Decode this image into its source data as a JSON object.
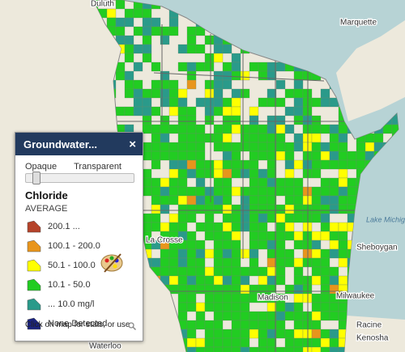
{
  "map": {
    "labels": [
      "Duluth",
      "Marquette",
      "Lake Michigan",
      "Sheboygan",
      "Milwaukee",
      "Racine",
      "Kenosha",
      "La Crosse",
      "Madison",
      "Waterloo"
    ]
  },
  "panel": {
    "title": "Groundwater...",
    "close": "×",
    "slider": {
      "min_label": "Opaque",
      "max_label": "Transparent"
    },
    "layer": "Chloride",
    "field": "AVERAGE",
    "legend": [
      {
        "label": "200.1 ...",
        "color": "#b5432a"
      },
      {
        "label": "100.1 - 200.0",
        "color": "#e8951c"
      },
      {
        "label": "50.1 - 100.0",
        "color": "#ffff00"
      },
      {
        "label": "10.1 - 50.0",
        "color": "#22cc22"
      },
      {
        "label": "... 10.0 mg/l",
        "color": "#2a9a8a"
      },
      {
        "label": "None Detected",
        "color": "#1a237e"
      }
    ],
    "footer": "Click on map for stats, or use"
  }
}
